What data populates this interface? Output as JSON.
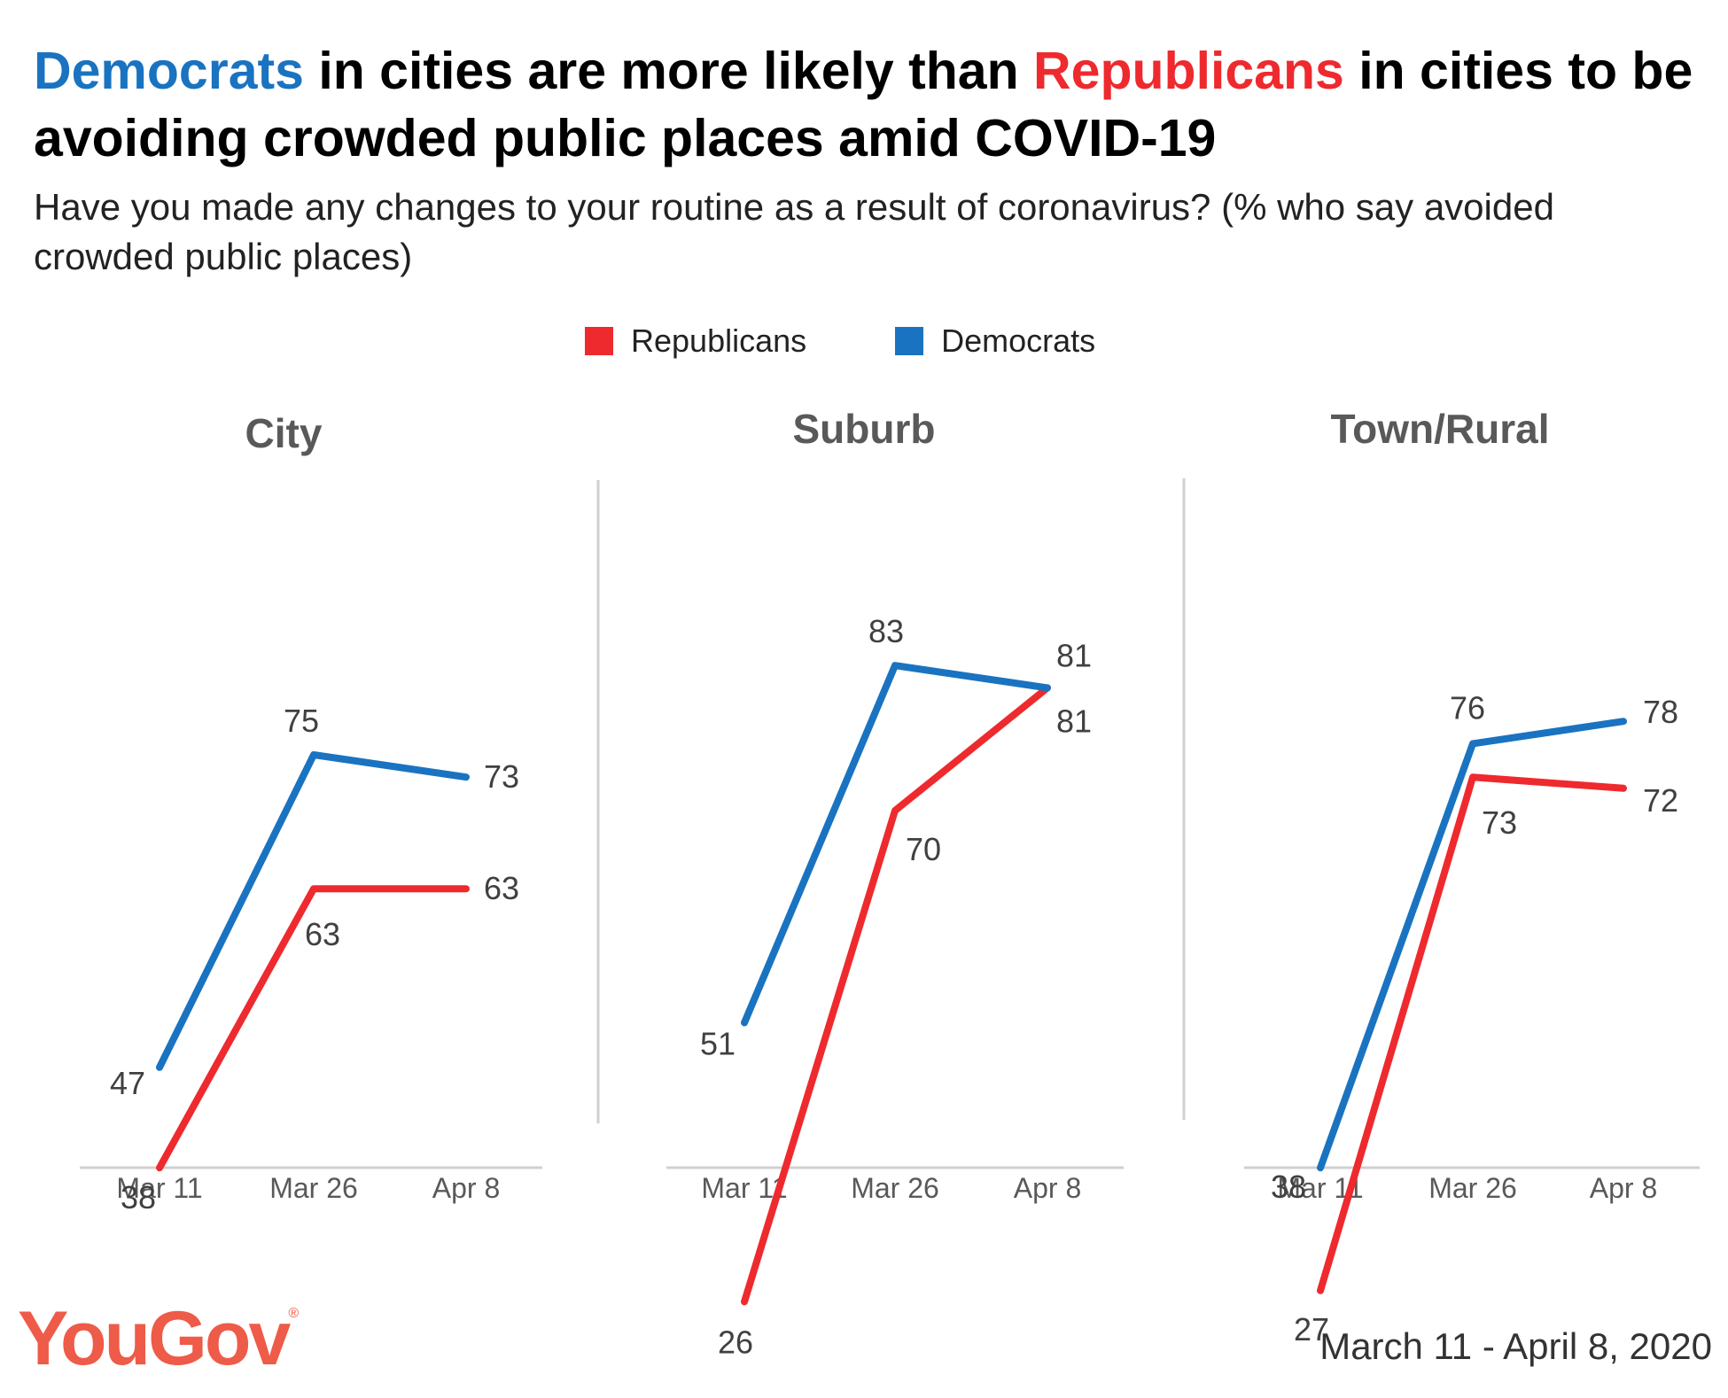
{
  "header": {
    "title_part1": "Democrats",
    "title_part2": " in cities are more likely than ",
    "title_part3": "Republicans",
    "title_part4": " in cities to be avoiding crowded public places amid COVID-19",
    "subtitle": "Have you made any changes to your routine as a result of coronavirus? (% who say avoided crowded public places)"
  },
  "legend": [
    {
      "label": "Republicans",
      "color": "#ee2a2e"
    },
    {
      "label": "Democrats",
      "color": "#1a73c0"
    }
  ],
  "footer": {
    "logo": "YouGov",
    "logo_mark": "®",
    "date_range": "March 11 - April 8, 2020"
  },
  "chart_data": [
    {
      "type": "line",
      "title": "City",
      "categories": [
        "Mar 11",
        "Mar 26",
        "Apr 8"
      ],
      "series": [
        {
          "name": "Republicans",
          "color": "#ee2a2e",
          "values": [
            38,
            63,
            63
          ]
        },
        {
          "name": "Democrats",
          "color": "#1a73c0",
          "values": [
            47,
            75,
            73
          ]
        }
      ]
    },
    {
      "type": "line",
      "title": "Suburb",
      "categories": [
        "Mar 11",
        "Mar 26",
        "Apr 8"
      ],
      "series": [
        {
          "name": "Republicans",
          "color": "#ee2a2e",
          "values": [
            26,
            70,
            81
          ]
        },
        {
          "name": "Democrats",
          "color": "#1a73c0",
          "values": [
            51,
            83,
            81
          ]
        }
      ]
    },
    {
      "type": "line",
      "title": "Town/Rural",
      "categories": [
        "Mar 11",
        "Mar 26",
        "Apr 8"
      ],
      "series": [
        {
          "name": "Republicans",
          "color": "#ee2a2e",
          "values": [
            27,
            73,
            72
          ]
        },
        {
          "name": "Democrats",
          "color": "#1a73c0",
          "values": [
            38,
            76,
            78
          ]
        }
      ]
    }
  ]
}
